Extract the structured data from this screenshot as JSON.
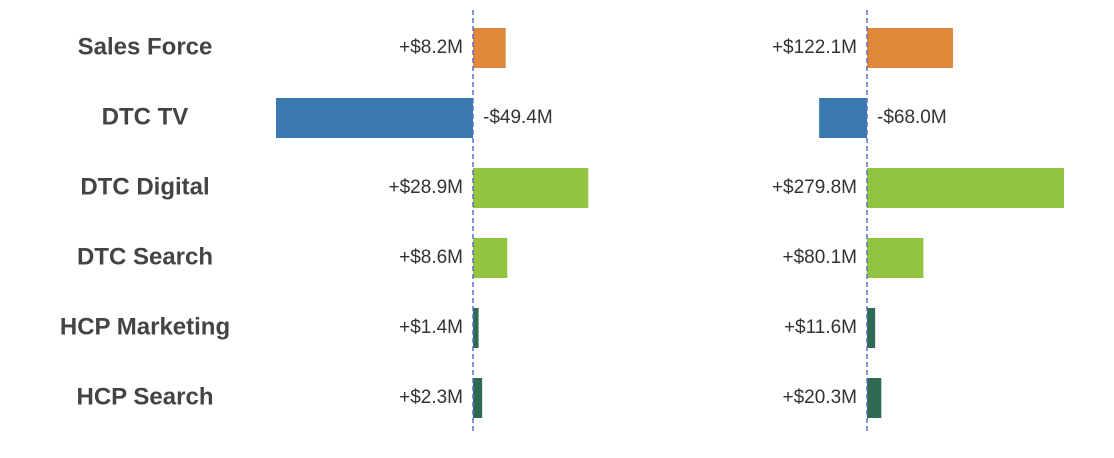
{
  "chart_data": {
    "type": "bar",
    "orientation": "horizontal",
    "categories": [
      "Sales Force",
      "DTC TV",
      "DTC Digital",
      "DTC Search",
      "HCP Marketing",
      "HCP Search"
    ],
    "colors": [
      "#e0873a",
      "#3a7ab0",
      "#93c440",
      "#93c440",
      "#2e6b52",
      "#2e6b52"
    ],
    "series": [
      {
        "values": [
          8.2,
          -49.4,
          28.9,
          8.6,
          1.4,
          2.3
        ],
        "value_labels": [
          "+$8.2M",
          "-$49.4M",
          "+$28.9M",
          "+$8.6M",
          "+$1.4M",
          "+$2.3M"
        ]
      },
      {
        "values": [
          122.1,
          -68.0,
          279.8,
          80.1,
          11.6,
          20.3
        ],
        "value_labels": [
          "+$122.1M",
          "-$68.0M",
          "+$279.8M",
          "+$80.1M",
          "+$11.6M",
          "+$20.3M"
        ]
      }
    ]
  }
}
